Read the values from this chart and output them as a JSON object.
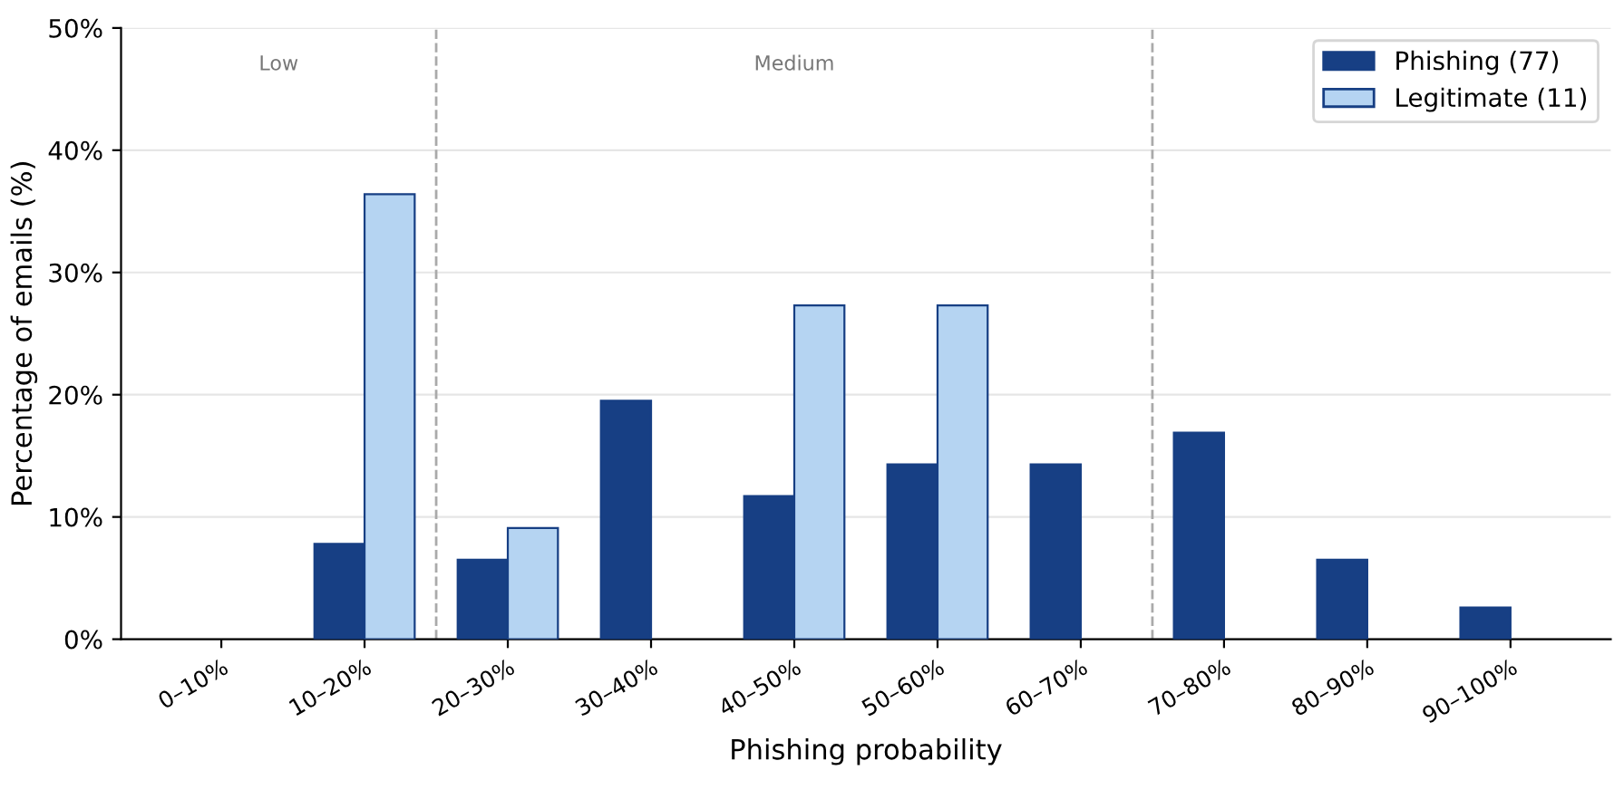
{
  "chart_data": {
    "type": "bar",
    "xlabel": "Phishing probability",
    "ylabel": "Percentage of emails (%)",
    "categories": [
      "0–10%",
      "10–20%",
      "20–30%",
      "30–40%",
      "40–50%",
      "50–60%",
      "60–70%",
      "70–80%",
      "80–90%",
      "90–100%"
    ],
    "series": [
      {
        "name": "Phishing (77)",
        "color": "#173f84",
        "values": [
          0,
          7.8,
          6.5,
          19.5,
          11.7,
          14.3,
          14.3,
          16.9,
          6.5,
          2.6
        ]
      },
      {
        "name": "Legitimate (11)",
        "color": "#b5d4f2",
        "values": [
          0,
          36.4,
          9.1,
          0,
          27.3,
          27.3,
          0,
          0,
          0,
          0
        ]
      }
    ],
    "ylim": [
      0,
      50
    ],
    "yticks": [
      {
        "value": 0,
        "label": "0%"
      },
      {
        "value": 10,
        "label": "10%"
      },
      {
        "value": 20,
        "label": "20%"
      },
      {
        "value": 30,
        "label": "30%"
      },
      {
        "value": 40,
        "label": "40%"
      },
      {
        "value": 50,
        "label": "50%"
      }
    ],
    "annotations": [
      "Low",
      "Medium"
    ],
    "grid": "y",
    "legend": "top right"
  }
}
